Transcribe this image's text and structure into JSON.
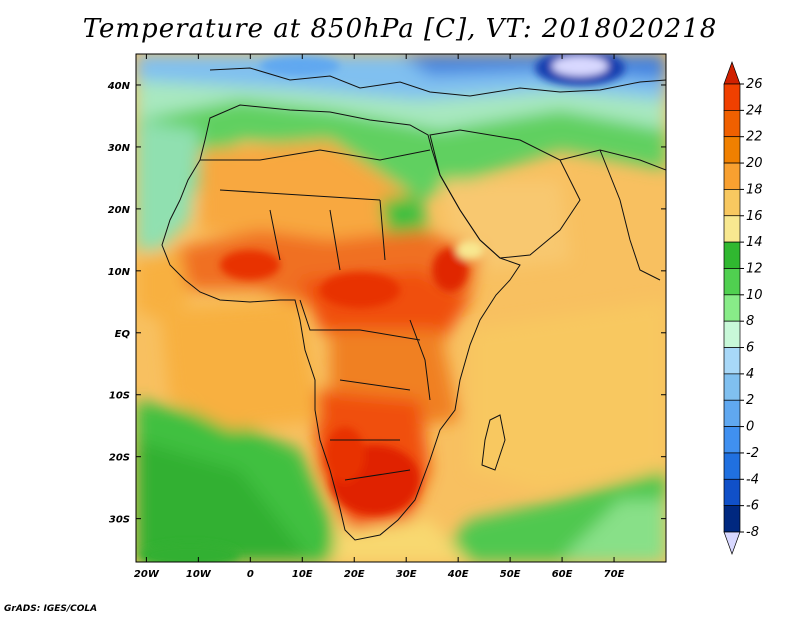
{
  "title": "Temperature at 850hPa [C], VT: 2018020218",
  "footer": "GrADS: IGES/COLA",
  "map": {
    "type": "filled-contour-map",
    "variable": "Temperature at 850hPa",
    "units": "C",
    "valid_time": "2018020218",
    "lon_range": [
      -22,
      80
    ],
    "lat_range": [
      -37,
      45
    ],
    "x_ticks": [
      {
        "value": -20,
        "label": "20W"
      },
      {
        "value": -10,
        "label": "10W"
      },
      {
        "value": 0,
        "label": "0"
      },
      {
        "value": 10,
        "label": "10E"
      },
      {
        "value": 20,
        "label": "20E"
      },
      {
        "value": 30,
        "label": "30E"
      },
      {
        "value": 40,
        "label": "40E"
      },
      {
        "value": 50,
        "label": "50E"
      },
      {
        "value": 60,
        "label": "60E"
      },
      {
        "value": 70,
        "label": "70E"
      }
    ],
    "y_ticks": [
      {
        "value": 40,
        "label": "40N"
      },
      {
        "value": 30,
        "label": "30N"
      },
      {
        "value": 20,
        "label": "20N"
      },
      {
        "value": 10,
        "label": "10N"
      },
      {
        "value": 0,
        "label": "EQ"
      },
      {
        "value": -10,
        "label": "10S"
      },
      {
        "value": -20,
        "label": "20S"
      },
      {
        "value": -30,
        "label": "30S"
      }
    ]
  },
  "colorbar": {
    "labels": [
      "26",
      "24",
      "22",
      "20",
      "18",
      "16",
      "14",
      "12",
      "10",
      "8",
      "6",
      "4",
      "2",
      "0",
      "-2",
      "-4",
      "-6",
      "-8"
    ],
    "colors": [
      "#d02000",
      "#f04000",
      "#f06000",
      "#f08000",
      "#f8a030",
      "#f8c860",
      "#f8e890",
      "#30b830",
      "#50d050",
      "#88ec88",
      "#c8f8d8",
      "#a8d8f8",
      "#80c0f0",
      "#60a8f0",
      "#4090f0",
      "#2070e0",
      "#1050c8",
      "#002880",
      "#d8d8ff"
    ]
  }
}
